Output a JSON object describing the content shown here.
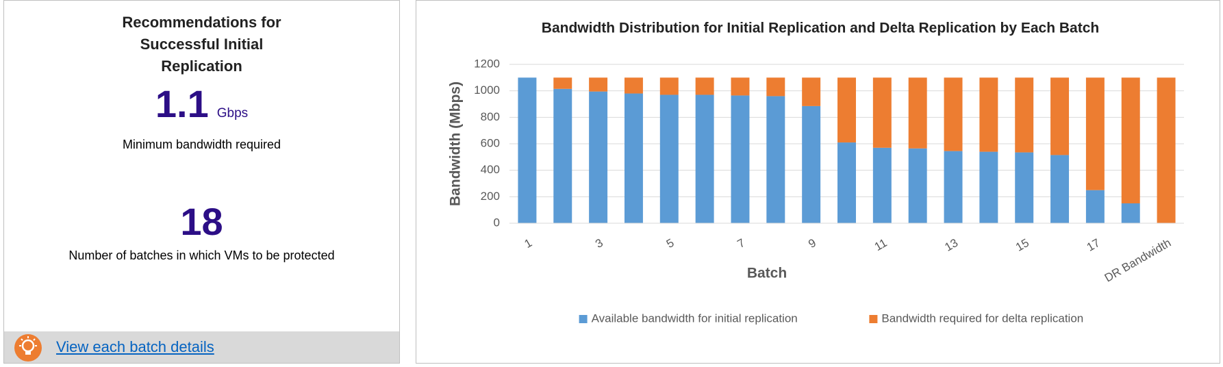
{
  "summary": {
    "title": "Recommendations for Successful Initial Replication",
    "bandwidth": {
      "value": "1.1",
      "unit": "Gbps",
      "caption": "Minimum bandwidth required"
    },
    "batches": {
      "value": "18",
      "caption": "Number of batches in which VMs to be protected"
    },
    "link": "View each batch details"
  },
  "chart_data": {
    "type": "stacked-bar",
    "title": "Bandwidth Distribution for Initial Replication and Delta Replication by Each Batch",
    "x_label": "Batch",
    "y_label": "Bandwidth (Mbps)",
    "categories": [
      "1",
      null,
      "3",
      null,
      "5",
      null,
      "7",
      null,
      "9",
      null,
      "11",
      null,
      "13",
      null,
      "15",
      null,
      "17",
      null,
      "DR Bandwidth"
    ],
    "series": [
      {
        "name": "Available bandwidth for initial replication",
        "color": "#5b9bd5",
        "values": [
          1100,
          1015,
          995,
          980,
          970,
          970,
          965,
          960,
          885,
          610,
          570,
          565,
          545,
          540,
          535,
          515,
          250,
          150,
          0
        ]
      },
      {
        "name": "Bandwidth required for delta replication",
        "color": "#ed7d31",
        "values": [
          0,
          85,
          105,
          120,
          130,
          130,
          135,
          140,
          215,
          490,
          530,
          535,
          555,
          560,
          565,
          585,
          850,
          950,
          1100
        ]
      }
    ],
    "ylim": [
      0,
      1200
    ],
    "yticks": [
      0,
      200,
      400,
      600,
      800,
      1000,
      1200
    ],
    "grid": true,
    "legend": "bottom"
  }
}
